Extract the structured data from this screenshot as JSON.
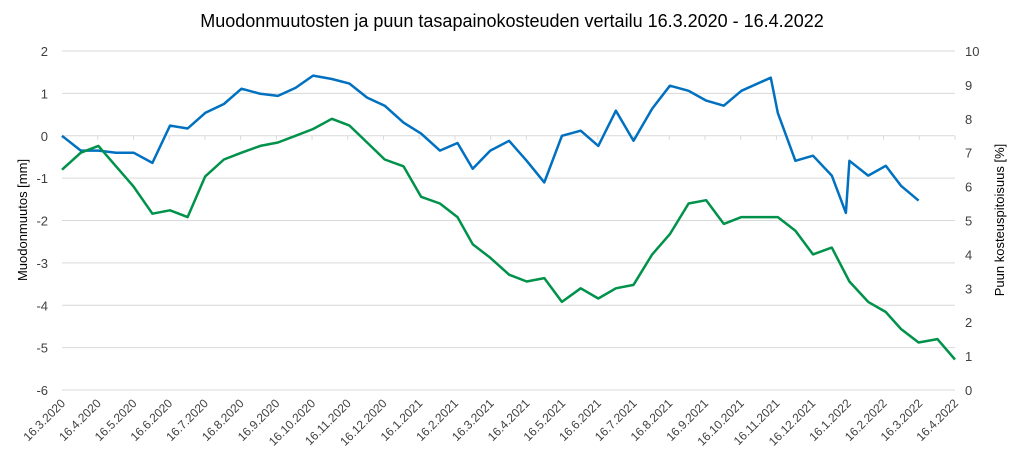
{
  "chart_data": {
    "type": "line",
    "title": "Muodonmuutosten ja puun tasapainokosteuden vertailu 16.3.2020 - 16.4.2022",
    "ylabel": "Muodonmuutos [mm]",
    "y2label": "Puun kosteuspitoisuus [%]",
    "ylim": [
      -6,
      2
    ],
    "y2lim": [
      0,
      10
    ],
    "yticks": [
      "2",
      "1",
      "0",
      "-1",
      "-2",
      "-3",
      "-4",
      "-5",
      "-6"
    ],
    "y2ticks": [
      "10",
      "9",
      "8",
      "7",
      "6",
      "5",
      "4",
      "3",
      "2",
      "1",
      "0"
    ],
    "xlim": [
      "2020-03-16",
      "2022-04-16"
    ],
    "xticks": [
      "16.3.2020",
      "16.4.2020",
      "16.5.2020",
      "16.6.2020",
      "16.7.2020",
      "16.8.2020",
      "16.9.2020",
      "16.10.2020",
      "16.11.2020",
      "16.12.2020",
      "16.1.2021",
      "16.2.2021",
      "16.3.2021",
      "16.4.2021",
      "16.5.2021",
      "16.6.2021",
      "16.7.2021",
      "16.8.2021",
      "16.9.2021",
      "16.10.2021",
      "16.11.2021",
      "16.12.2021",
      "16.1.2022",
      "16.2.2022",
      "16.3.2022",
      "16.4.2022"
    ],
    "grid": true,
    "legend": "none",
    "series": [
      {
        "axis": "left",
        "color": "#0070c0",
        "points": [
          [
            "2020-03-16",
            0.0
          ],
          [
            "2020-04-01",
            -0.35
          ],
          [
            "2020-04-16",
            -0.35
          ],
          [
            "2020-05-01",
            -0.4
          ],
          [
            "2020-05-16",
            -0.4
          ],
          [
            "2020-06-01",
            -0.64
          ],
          [
            "2020-06-16",
            0.24
          ],
          [
            "2020-07-01",
            0.17
          ],
          [
            "2020-07-16",
            0.54
          ],
          [
            "2020-08-01",
            0.75
          ],
          [
            "2020-08-16",
            1.11
          ],
          [
            "2020-09-01",
            0.99
          ],
          [
            "2020-09-16",
            0.94
          ],
          [
            "2020-10-01",
            1.13
          ],
          [
            "2020-10-16",
            1.42
          ],
          [
            "2020-11-01",
            1.34
          ],
          [
            "2020-11-16",
            1.23
          ],
          [
            "2020-12-01",
            0.9
          ],
          [
            "2020-12-16",
            0.71
          ],
          [
            "2021-01-01",
            0.31
          ],
          [
            "2021-01-16",
            0.05
          ],
          [
            "2021-02-01",
            -0.35
          ],
          [
            "2021-02-16",
            -0.17
          ],
          [
            "2021-03-01",
            -0.78
          ],
          [
            "2021-03-16",
            -0.35
          ],
          [
            "2021-04-01",
            -0.12
          ],
          [
            "2021-04-16",
            -0.59
          ],
          [
            "2021-05-01",
            -1.1
          ],
          [
            "2021-05-16",
            0.0
          ],
          [
            "2021-06-01",
            0.12
          ],
          [
            "2021-06-16",
            -0.24
          ],
          [
            "2021-07-01",
            0.59
          ],
          [
            "2021-07-16",
            -0.12
          ],
          [
            "2021-08-01",
            0.64
          ],
          [
            "2021-08-16",
            1.18
          ],
          [
            "2021-09-01",
            1.06
          ],
          [
            "2021-09-16",
            0.83
          ],
          [
            "2021-10-01",
            0.71
          ],
          [
            "2021-10-16",
            1.06
          ],
          [
            "2021-11-10",
            1.37
          ],
          [
            "2021-11-16",
            0.54
          ],
          [
            "2021-12-01",
            -0.59
          ],
          [
            "2021-12-16",
            -0.47
          ],
          [
            "2022-01-01",
            -0.94
          ],
          [
            "2022-01-13",
            -1.82
          ],
          [
            "2022-01-16",
            -0.59
          ],
          [
            "2022-02-01",
            -0.94
          ],
          [
            "2022-02-16",
            -0.71
          ],
          [
            "2022-03-01",
            -1.18
          ],
          [
            "2022-03-16",
            -1.53
          ]
        ]
      },
      {
        "axis": "right",
        "color": "#00924a",
        "points": [
          [
            "2020-03-16",
            6.5
          ],
          [
            "2020-04-01",
            7.0
          ],
          [
            "2020-04-16",
            7.2
          ],
          [
            "2020-05-01",
            6.6
          ],
          [
            "2020-05-16",
            6.0
          ],
          [
            "2020-06-01",
            5.2
          ],
          [
            "2020-06-16",
            5.3
          ],
          [
            "2020-07-01",
            5.1
          ],
          [
            "2020-07-16",
            6.3
          ],
          [
            "2020-08-01",
            6.8
          ],
          [
            "2020-08-16",
            7.0
          ],
          [
            "2020-09-01",
            7.2
          ],
          [
            "2020-09-16",
            7.3
          ],
          [
            "2020-10-01",
            7.5
          ],
          [
            "2020-10-16",
            7.7
          ],
          [
            "2020-11-01",
            8.0
          ],
          [
            "2020-11-16",
            7.8
          ],
          [
            "2020-12-01",
            7.3
          ],
          [
            "2020-12-16",
            6.8
          ],
          [
            "2021-01-01",
            6.6
          ],
          [
            "2021-01-16",
            5.7
          ],
          [
            "2021-02-01",
            5.5
          ],
          [
            "2021-02-16",
            5.1
          ],
          [
            "2021-03-01",
            4.3
          ],
          [
            "2021-03-16",
            3.9
          ],
          [
            "2021-04-01",
            3.4
          ],
          [
            "2021-04-16",
            3.2
          ],
          [
            "2021-05-01",
            3.3
          ],
          [
            "2021-05-16",
            2.6
          ],
          [
            "2021-06-01",
            3.0
          ],
          [
            "2021-06-16",
            2.7
          ],
          [
            "2021-07-01",
            3.0
          ],
          [
            "2021-07-16",
            3.1
          ],
          [
            "2021-08-01",
            4.0
          ],
          [
            "2021-08-16",
            4.6
          ],
          [
            "2021-09-01",
            5.5
          ],
          [
            "2021-09-16",
            5.6
          ],
          [
            "2021-10-01",
            4.9
          ],
          [
            "2021-10-16",
            5.1
          ],
          [
            "2021-11-01",
            5.1
          ],
          [
            "2021-11-16",
            5.1
          ],
          [
            "2021-12-01",
            4.7
          ],
          [
            "2021-12-16",
            4.0
          ],
          [
            "2022-01-01",
            4.2
          ],
          [
            "2022-01-16",
            3.2
          ],
          [
            "2022-02-01",
            2.6
          ],
          [
            "2022-02-16",
            2.3
          ],
          [
            "2022-03-01",
            1.8
          ],
          [
            "2022-03-16",
            1.4
          ],
          [
            "2022-04-01",
            1.5
          ],
          [
            "2022-04-16",
            0.9
          ]
        ]
      }
    ]
  }
}
